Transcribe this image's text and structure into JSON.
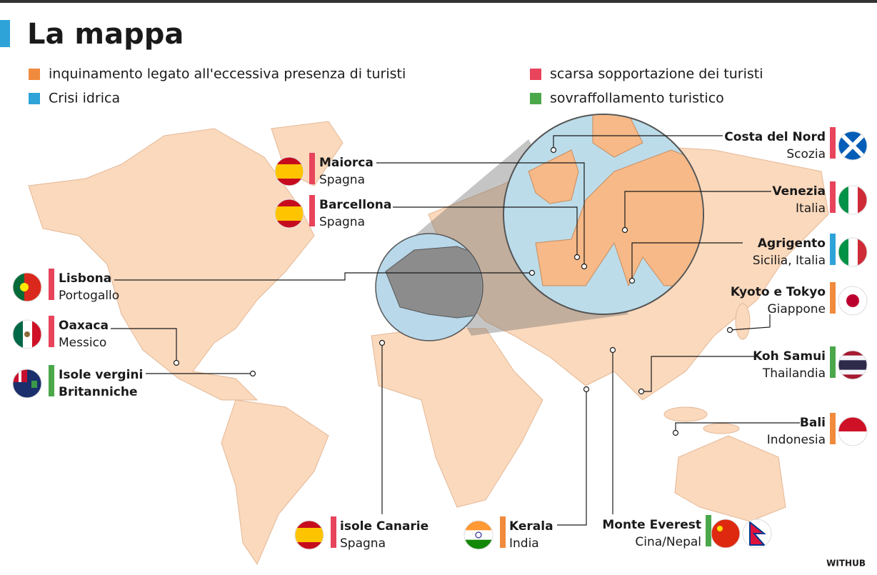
{
  "header": {
    "title": "La mappa"
  },
  "legend": [
    {
      "label": "inquinamento legato all'eccessiva presenza di turisti",
      "color": "#f08a3c"
    },
    {
      "label": "Crisi idrica",
      "color": "#2ea3d8"
    },
    {
      "label": "scarsa sopportazione dei turisti",
      "color": "#e8445c"
    },
    {
      "label": "sovraffollamento turistico",
      "color": "#4aa84a"
    }
  ],
  "locations": [
    {
      "name": "Maiorca",
      "region": "Spagna",
      "color": "#e8445c"
    },
    {
      "name": "Barcellona",
      "region": "Spagna",
      "color": "#e8445c"
    },
    {
      "name": "Lisbona",
      "region": "Portogallo",
      "color": "#e8445c"
    },
    {
      "name": "Oaxaca",
      "region": "Messico",
      "color": "#e8445c"
    },
    {
      "name": "Isole vergini",
      "region": "Britanniche",
      "color": "#4aa84a"
    },
    {
      "name": "Costa del Nord",
      "region": "Scozia",
      "color": "#e8445c"
    },
    {
      "name": "Venezia",
      "region": "Italia",
      "color": "#e8445c"
    },
    {
      "name": "Agrigento",
      "region": "Sicilia, Italia",
      "color": "#2ea3d8"
    },
    {
      "name": "Kyoto e Tokyo",
      "region": "Giappone",
      "color": "#f08a3c"
    },
    {
      "name": "Koh Samui",
      "region": "Thailandia",
      "color": "#4aa84a"
    },
    {
      "name": "Bali",
      "region": "Indonesia",
      "color": "#f08a3c"
    },
    {
      "name": "isole Canarie",
      "region": "Spagna",
      "color": "#e8445c"
    },
    {
      "name": "Kerala",
      "region": "India",
      "color": "#f08a3c"
    },
    {
      "name": "Monte Everest",
      "region": "Cina/Nepal",
      "color": "#4aa84a"
    }
  ],
  "footer": {
    "source": "WITHUB"
  }
}
